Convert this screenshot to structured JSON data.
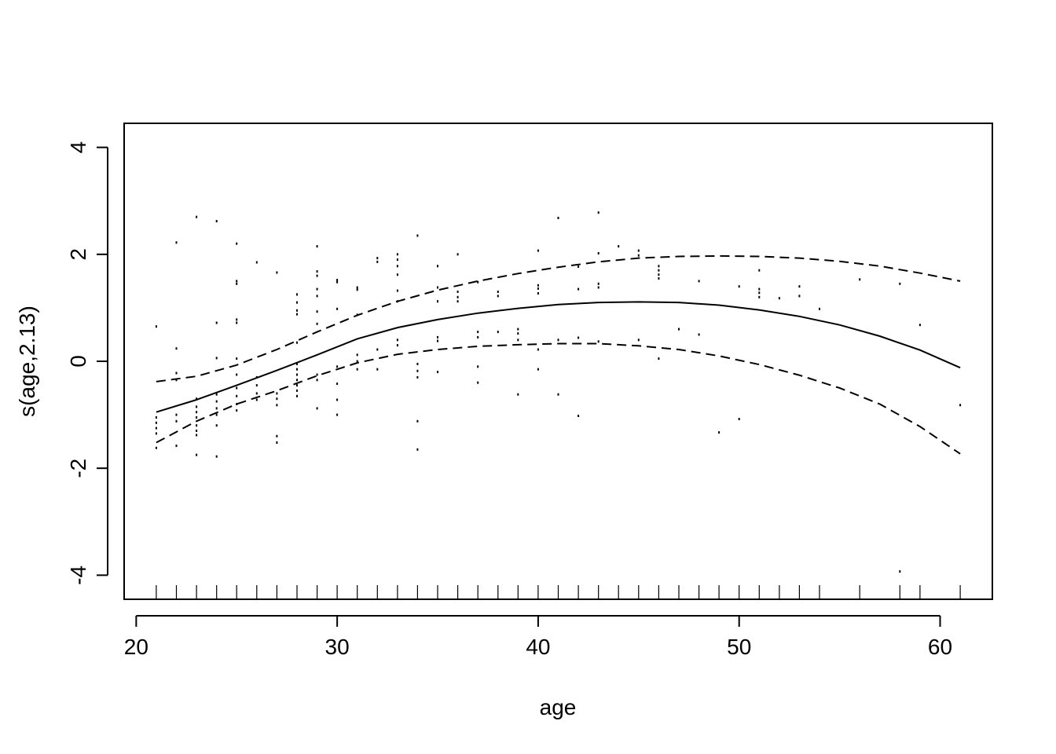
{
  "chart_data": {
    "type": "line",
    "title": "",
    "xlabel": "age",
    "ylabel": "s(age,2.13)",
    "xlim": [
      19.4,
      62.6
    ],
    "ylim": [
      -4.45,
      4.45
    ],
    "x_ticks": [
      20,
      30,
      40,
      50,
      60
    ],
    "y_ticks": [
      -4,
      -2,
      0,
      2,
      4
    ],
    "x_tick_labels": [
      "20",
      "30",
      "40",
      "50",
      "60"
    ],
    "y_tick_labels": [
      "-4",
      "-2",
      "0",
      "2",
      "4"
    ],
    "grid": false,
    "legend": "none",
    "series": [
      {
        "role": "fit",
        "line_style": "solid",
        "x": [
          21,
          23,
          25,
          27,
          29,
          31,
          33,
          35,
          37,
          39,
          41,
          43,
          45,
          47,
          49,
          51,
          53,
          55,
          57,
          59,
          61
        ],
        "y": [
          -0.95,
          -0.72,
          -0.45,
          -0.17,
          0.12,
          0.42,
          0.63,
          0.78,
          0.9,
          0.99,
          1.06,
          1.1,
          1.11,
          1.1,
          1.05,
          0.96,
          0.84,
          0.68,
          0.47,
          0.21,
          -0.12
        ]
      },
      {
        "role": "upper-band",
        "line_style": "dashed",
        "x": [
          21,
          23,
          25,
          27,
          29,
          31,
          33,
          35,
          37,
          39,
          41,
          43,
          45,
          47,
          49,
          51,
          53,
          55,
          57,
          59,
          61
        ],
        "y": [
          -0.38,
          -0.28,
          -0.07,
          0.22,
          0.55,
          0.86,
          1.12,
          1.33,
          1.5,
          1.64,
          1.76,
          1.86,
          1.93,
          1.96,
          1.97,
          1.96,
          1.93,
          1.87,
          1.78,
          1.65,
          1.5
        ]
      },
      {
        "role": "lower-band",
        "line_style": "dashed",
        "x": [
          21,
          23,
          25,
          27,
          29,
          31,
          33,
          35,
          37,
          39,
          41,
          43,
          45,
          47,
          49,
          51,
          53,
          55,
          57,
          59,
          61
        ],
        "y": [
          -1.52,
          -1.12,
          -0.8,
          -0.55,
          -0.27,
          -0.03,
          0.13,
          0.22,
          0.28,
          0.31,
          0.33,
          0.33,
          0.29,
          0.22,
          0.1,
          -0.06,
          -0.26,
          -0.5,
          -0.8,
          -1.22,
          -1.73
        ]
      }
    ],
    "partial_residuals": [
      [
        21,
        0.65
      ],
      [
        21,
        -1.05
      ],
      [
        21,
        -1.15
      ],
      [
        21,
        -1.25
      ],
      [
        21,
        -1.35
      ],
      [
        21,
        -1.62
      ],
      [
        22,
        2.22
      ],
      [
        22,
        0.24
      ],
      [
        22,
        -0.22
      ],
      [
        22,
        -0.35
      ],
      [
        22,
        -1.0
      ],
      [
        22,
        -1.12
      ],
      [
        22,
        -1.58
      ],
      [
        23,
        2.7
      ],
      [
        23,
        -0.7
      ],
      [
        23,
        -0.85
      ],
      [
        23,
        -0.95
      ],
      [
        23,
        -1.05
      ],
      [
        23,
        -1.2
      ],
      [
        23,
        -1.3
      ],
      [
        23,
        -1.38
      ],
      [
        23,
        -1.75
      ],
      [
        24,
        2.62
      ],
      [
        24,
        0.72
      ],
      [
        24,
        0.06
      ],
      [
        24,
        -0.62
      ],
      [
        24,
        -0.75
      ],
      [
        24,
        -0.88
      ],
      [
        24,
        -1.0
      ],
      [
        24,
        -1.2
      ],
      [
        24,
        -1.78
      ],
      [
        25,
        2.2
      ],
      [
        25,
        1.5
      ],
      [
        25,
        1.45
      ],
      [
        25,
        0.78
      ],
      [
        25,
        0.72
      ],
      [
        25,
        0.05
      ],
      [
        25,
        -0.25
      ],
      [
        25,
        -0.5
      ],
      [
        25,
        -0.65
      ],
      [
        25,
        -0.8
      ],
      [
        25,
        -0.92
      ],
      [
        26,
        1.85
      ],
      [
        26,
        -0.3
      ],
      [
        26,
        -0.45
      ],
      [
        26,
        -0.6
      ],
      [
        26,
        -0.72
      ],
      [
        27,
        1.66
      ],
      [
        27,
        -0.6
      ],
      [
        27,
        -0.7
      ],
      [
        27,
        -0.82
      ],
      [
        27,
        -1.4
      ],
      [
        27,
        -1.52
      ],
      [
        28,
        1.25
      ],
      [
        28,
        1.1
      ],
      [
        28,
        0.95
      ],
      [
        28,
        0.88
      ],
      [
        28,
        0.35
      ],
      [
        28,
        -0.05
      ],
      [
        28,
        -0.15
      ],
      [
        28,
        -0.25
      ],
      [
        28,
        -0.35
      ],
      [
        28,
        -0.45
      ],
      [
        28,
        -0.55
      ],
      [
        28,
        -0.65
      ],
      [
        29,
        2.15
      ],
      [
        29,
        1.68
      ],
      [
        29,
        1.6
      ],
      [
        29,
        1.35
      ],
      [
        29,
        1.22
      ],
      [
        29,
        0.93
      ],
      [
        29,
        0.7
      ],
      [
        29,
        -0.25
      ],
      [
        29,
        -0.35
      ],
      [
        29,
        -0.88
      ],
      [
        30,
        1.52
      ],
      [
        30,
        1.48
      ],
      [
        30,
        0.98
      ],
      [
        30,
        -0.1
      ],
      [
        30,
        -0.42
      ],
      [
        30,
        -0.72
      ],
      [
        30,
        -1.0
      ],
      [
        31,
        1.38
      ],
      [
        31,
        1.34
      ],
      [
        31,
        0.87
      ],
      [
        31,
        0.12
      ],
      [
        31,
        0.0
      ],
      [
        31,
        -0.15
      ],
      [
        32,
        1.93
      ],
      [
        32,
        1.86
      ],
      [
        32,
        0.22
      ],
      [
        32,
        -0.15
      ],
      [
        33,
        2.0
      ],
      [
        33,
        1.9
      ],
      [
        33,
        1.78
      ],
      [
        33,
        1.62
      ],
      [
        33,
        1.32
      ],
      [
        33,
        1.12
      ],
      [
        33,
        0.4
      ],
      [
        33,
        0.3
      ],
      [
        34,
        2.35
      ],
      [
        34,
        -0.05
      ],
      [
        34,
        -0.18
      ],
      [
        34,
        -0.3
      ],
      [
        34,
        -1.12
      ],
      [
        34,
        -1.65
      ],
      [
        35,
        1.78
      ],
      [
        35,
        1.38
      ],
      [
        35,
        1.12
      ],
      [
        35,
        0.45
      ],
      [
        35,
        0.38
      ],
      [
        35,
        -0.2
      ],
      [
        36,
        2.0
      ],
      [
        36,
        1.3
      ],
      [
        36,
        1.2
      ],
      [
        36,
        1.12
      ],
      [
        37,
        1.48
      ],
      [
        37,
        0.55
      ],
      [
        37,
        0.45
      ],
      [
        37,
        -0.1
      ],
      [
        37,
        -0.4
      ],
      [
        38,
        1.3
      ],
      [
        38,
        1.22
      ],
      [
        38,
        0.55
      ],
      [
        39,
        0.6
      ],
      [
        39,
        0.52
      ],
      [
        39,
        0.4
      ],
      [
        39,
        -0.62
      ],
      [
        40,
        2.07
      ],
      [
        40,
        1.42
      ],
      [
        40,
        1.36
      ],
      [
        40,
        1.27
      ],
      [
        40,
        0.22
      ],
      [
        40,
        -0.15
      ],
      [
        41,
        2.68
      ],
      [
        41,
        0.4
      ],
      [
        41,
        -0.62
      ],
      [
        42,
        1.77
      ],
      [
        42,
        1.35
      ],
      [
        42,
        0.44
      ],
      [
        42,
        -1.02
      ],
      [
        43,
        2.78
      ],
      [
        43,
        2.02
      ],
      [
        43,
        1.45
      ],
      [
        43,
        1.38
      ],
      [
        43,
        0.37
      ],
      [
        44,
        2.15
      ],
      [
        45,
        2.07
      ],
      [
        45,
        1.98
      ],
      [
        45,
        0.4
      ],
      [
        46,
        1.78
      ],
      [
        46,
        1.7
      ],
      [
        46,
        1.62
      ],
      [
        46,
        1.55
      ],
      [
        46,
        0.05
      ],
      [
        47,
        0.6
      ],
      [
        48,
        1.5
      ],
      [
        48,
        0.5
      ],
      [
        49,
        -1.33
      ],
      [
        50,
        1.4
      ],
      [
        50,
        -1.08
      ],
      [
        51,
        1.7
      ],
      [
        51,
        1.35
      ],
      [
        51,
        1.28
      ],
      [
        51,
        1.2
      ],
      [
        52,
        1.18
      ],
      [
        53,
        1.4
      ],
      [
        53,
        1.22
      ],
      [
        54,
        0.98
      ],
      [
        56,
        1.53
      ],
      [
        58,
        1.45
      ],
      [
        58,
        -3.93
      ],
      [
        59,
        0.68
      ],
      [
        61,
        -0.82
      ]
    ],
    "rug_x": [
      21,
      22,
      23,
      24,
      25,
      26,
      27,
      28,
      29,
      30,
      31,
      32,
      33,
      34,
      35,
      36,
      37,
      38,
      39,
      40,
      41,
      42,
      43,
      44,
      45,
      46,
      47,
      48,
      49,
      50,
      51,
      52,
      53,
      54,
      56,
      58,
      59,
      61
    ]
  }
}
